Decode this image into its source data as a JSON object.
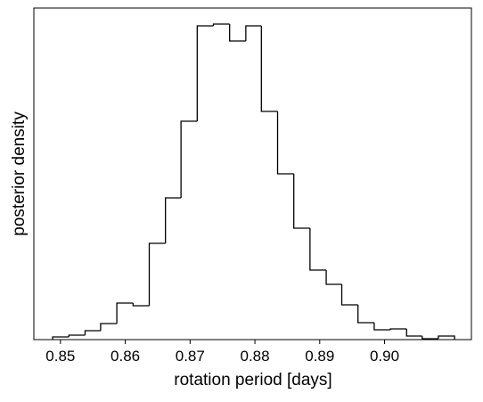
{
  "chart_data": {
    "type": "histogram",
    "xlabel": "rotation period [days]",
    "ylabel": "posterior density",
    "bins": [
      0.8488,
      0.8513,
      0.8538,
      0.8562,
      0.8587,
      0.8612,
      0.8637,
      0.8662,
      0.8686,
      0.8711,
      0.8736,
      0.8761,
      0.8786,
      0.881,
      0.8835,
      0.886,
      0.8885,
      0.891,
      0.8934,
      0.8959,
      0.8984,
      0.9009,
      0.9034,
      0.9058,
      0.9083,
      0.9108
    ],
    "values": [
      3,
      5,
      10,
      18,
      41,
      38,
      108,
      159,
      245,
      352,
      354,
      335,
      352,
      256,
      186,
      125,
      78,
      62,
      39,
      19,
      11,
      12,
      4,
      1,
      4
    ],
    "color": "#000000",
    "xlim": [
      0.8459,
      0.9134
    ],
    "xticks": [
      {
        "value": 0.85,
        "label": "0.85"
      },
      0.86,
      0.87,
      0.88,
      0.89,
      {
        "value": 0.9,
        "label": "0.90"
      }
    ],
    "ylim": [
      0,
      372
    ]
  }
}
